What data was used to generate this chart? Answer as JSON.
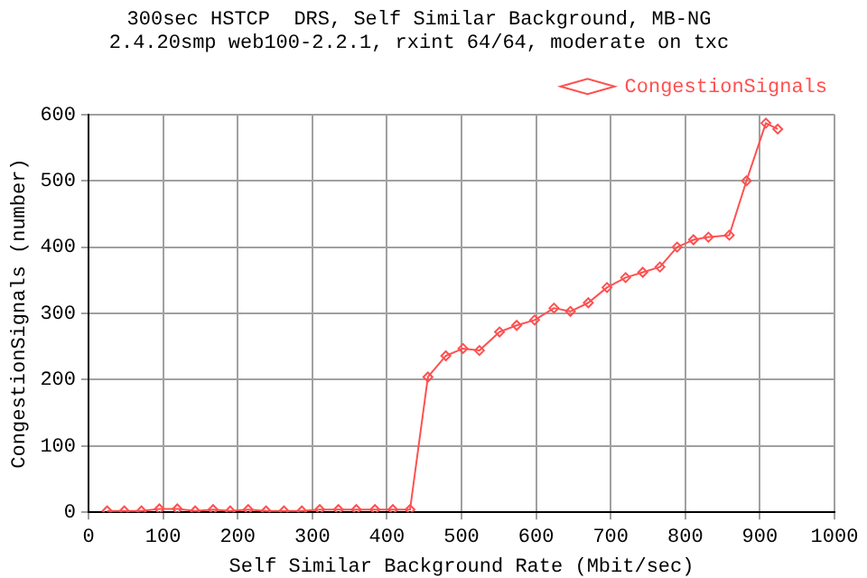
{
  "chart_data": {
    "type": "line",
    "title": "300sec HSTCP  DRS, Self Similar Background, MB-NG",
    "subtitle": "2.4.20smp web100-2.2.1, rxint 64/64, moderate on txc",
    "xlabel": "Self Similar Background Rate (Mbit/sec)",
    "ylabel": "CongestionSignals (number)",
    "x": [
      25,
      48,
      71,
      95,
      119,
      143,
      167,
      190,
      214,
      238,
      262,
      286,
      310,
      335,
      359,
      384,
      408,
      431,
      455,
      479,
      502,
      524,
      551,
      574,
      598,
      624,
      646,
      670,
      695,
      720,
      743,
      766,
      789,
      811,
      831,
      859,
      882,
      908,
      924
    ],
    "series": [
      {
        "name": "CongestionSignals",
        "color": "#ff5050",
        "values": [
          2,
          2,
          2,
          5,
          5,
          2,
          4,
          2,
          4,
          2,
          2,
          2,
          4,
          4,
          4,
          4,
          4,
          4,
          204,
          236,
          247,
          244,
          272,
          282,
          290,
          308,
          303,
          316,
          339,
          354,
          362,
          370,
          400,
          411,
          415,
          418,
          500,
          587,
          578
        ]
      }
    ],
    "xlim": [
      0,
      1000
    ],
    "xticks": [
      0,
      100,
      200,
      300,
      400,
      500,
      600,
      700,
      800,
      900,
      1000
    ],
    "ylim": [
      0,
      600
    ],
    "yticks": [
      0,
      100,
      200,
      300,
      400,
      500,
      600
    ],
    "grid": true,
    "legend": "top right",
    "marker": "diamond",
    "line_style": "solid"
  }
}
